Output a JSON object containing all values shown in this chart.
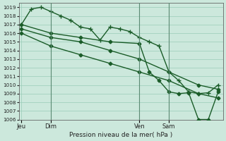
{
  "background_color": "#cce8dc",
  "plot_bg_color": "#cce8dc",
  "grid_color": "#99ccb8",
  "line_color": "#1a5c28",
  "ylabel_min": 1006,
  "ylabel_max": 1019,
  "xlabel": "Pression niveau de la mer( hPa )",
  "xtick_labels": [
    "Jeu",
    "Dim",
    "Ven",
    "Sam"
  ],
  "xtick_positions": [
    0,
    12,
    48,
    60
  ],
  "series": [
    {
      "x": [
        0,
        4,
        8,
        12,
        16,
        20,
        24,
        28,
        32,
        36,
        40,
        44,
        48,
        52,
        56,
        60,
        64,
        68,
        72,
        76,
        80
      ],
      "y": [
        1017.0,
        1018.8,
        1019.0,
        1018.5,
        1018.0,
        1017.5,
        1016.7,
        1016.5,
        1015.2,
        1016.7,
        1016.5,
        1016.2,
        1015.5,
        1015.0,
        1014.5,
        1011.5,
        1010.5,
        1009.2,
        1009.0,
        1009.1,
        1010.0
      ],
      "marker": "+",
      "markersize": 4,
      "linewidth": 1.0
    },
    {
      "x": [
        0,
        12,
        24,
        36,
        48,
        60,
        72,
        80
      ],
      "y": [
        1016.5,
        1015.5,
        1015.0,
        1014.0,
        1013.0,
        1011.5,
        1010.0,
        1009.5
      ],
      "marker": "D",
      "markersize": 2.5,
      "linewidth": 1.0
    },
    {
      "x": [
        0,
        12,
        24,
        36,
        48,
        60,
        72,
        80
      ],
      "y": [
        1016.0,
        1014.5,
        1013.5,
        1012.5,
        1011.5,
        1010.5,
        1009.0,
        1008.5
      ],
      "marker": "D",
      "markersize": 2.5,
      "linewidth": 1.0
    },
    {
      "x": [
        0,
        12,
        24,
        36,
        48,
        52,
        56,
        60,
        64,
        68,
        72,
        76,
        80
      ],
      "y": [
        1017.0,
        1016.0,
        1015.5,
        1015.0,
        1014.8,
        1011.5,
        1010.5,
        1009.2,
        1009.0,
        1009.1,
        1006.0,
        1006.0,
        1009.2
      ],
      "marker": "D",
      "markersize": 2.5,
      "linewidth": 1.0
    }
  ],
  "vlines": [
    12,
    48,
    60
  ],
  "xlim": [
    -1,
    82
  ],
  "ylim": [
    1006,
    1019.5
  ]
}
